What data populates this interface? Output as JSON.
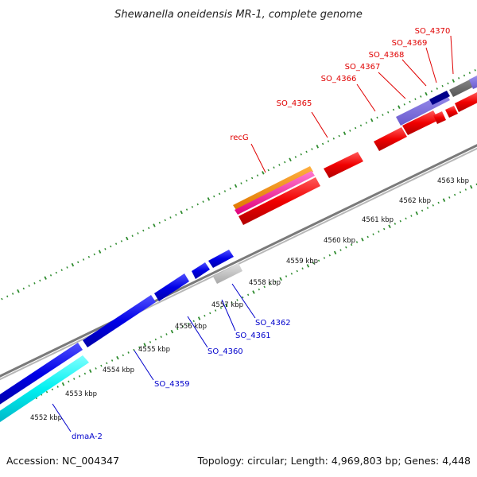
{
  "title": "Shewanella oneidensis MR-1, complete genome",
  "footer": {
    "accession": "Accession: NC_004347",
    "summary": "Topology: circular; Length: 4,969,803 bp; Genes: 4,448"
  },
  "colors": {
    "backbone": "#8a8a8a",
    "tick": "#2e8b2e",
    "forward_label": "#e00000",
    "reverse_label": "#0000cc"
  },
  "ticks": [
    {
      "label": "4552 kbp",
      "kbp": 4552
    },
    {
      "label": "4553 kbp",
      "kbp": 4553
    },
    {
      "label": "4554 kbp",
      "kbp": 4554
    },
    {
      "label": "4555 kbp",
      "kbp": 4555
    },
    {
      "label": "4556 kbp",
      "kbp": 4556
    },
    {
      "label": "4557 kbp",
      "kbp": 4557
    },
    {
      "label": "4558 kbp",
      "kbp": 4558
    },
    {
      "label": "4559 kbp",
      "kbp": 4559
    },
    {
      "label": "4560 kbp",
      "kbp": 4560
    },
    {
      "label": "4561 kbp",
      "kbp": 4561
    },
    {
      "label": "4562 kbp",
      "kbp": 4562
    },
    {
      "label": "4563 kbp",
      "kbp": 4563
    }
  ],
  "genes_labels": {
    "forward": [
      "recG",
      "SO_4365",
      "SO_4366",
      "SO_4367",
      "SO_4368",
      "SO_4369",
      "SO_4370"
    ],
    "reverse": [
      "dmaA-2",
      "SO_4359",
      "SO_4360",
      "SO_4361",
      "SO_4362"
    ]
  }
}
